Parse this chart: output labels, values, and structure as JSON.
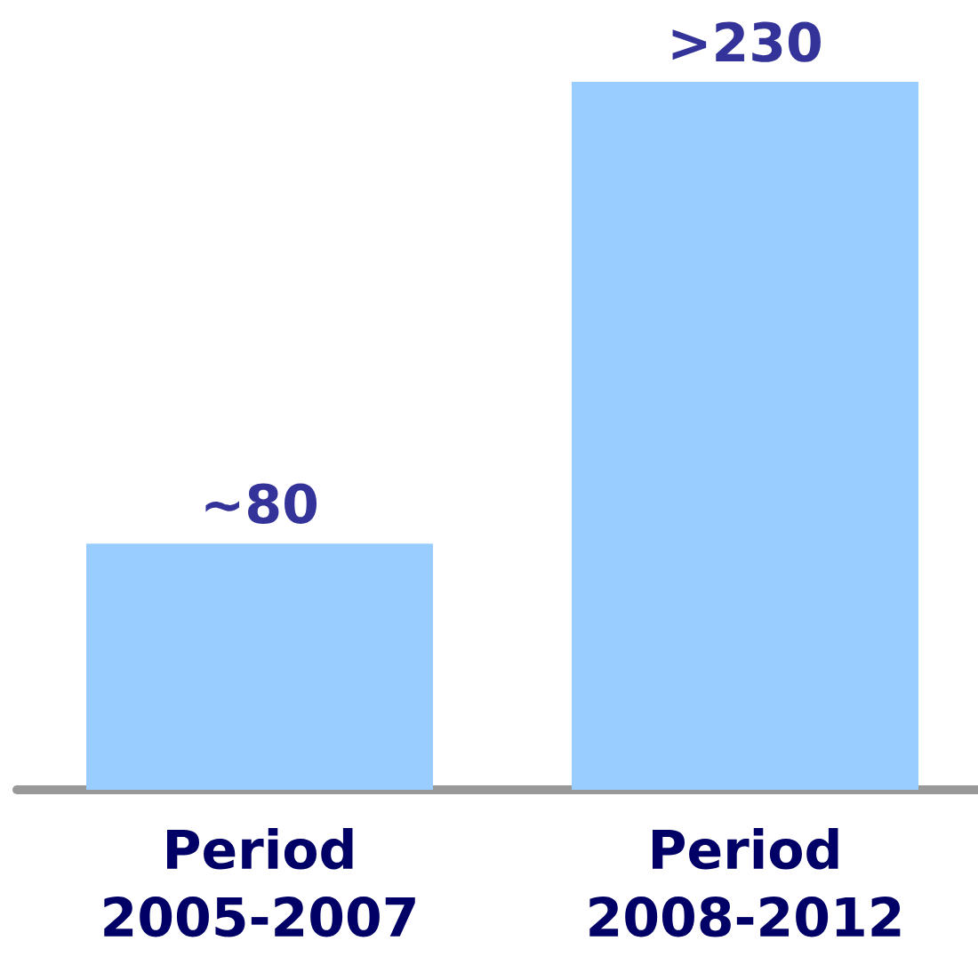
{
  "chart_data": {
    "type": "bar",
    "categories": [
      "Period 2005-2007",
      "Period 2008-2012"
    ],
    "values": [
      80,
      230
    ],
    "value_labels": [
      "~80",
      ">230"
    ],
    "color": "#99ccff"
  }
}
